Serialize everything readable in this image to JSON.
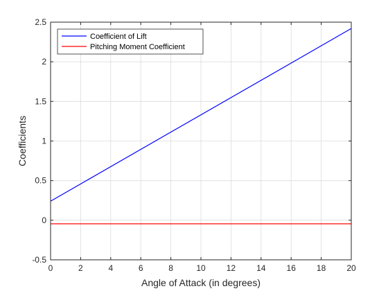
{
  "chart_data": {
    "type": "line",
    "title": "",
    "xlabel": "Angle of Attack (in degrees)",
    "ylabel": "Coefficients",
    "xlim": [
      0,
      20
    ],
    "ylim": [
      -0.5,
      2.5
    ],
    "xticks": [
      0,
      2,
      4,
      6,
      8,
      10,
      12,
      14,
      16,
      18,
      20
    ],
    "yticks": [
      -0.5,
      0,
      0.5,
      1,
      1.5,
      2,
      2.5
    ],
    "xtick_labels": [
      "0",
      "2",
      "4",
      "6",
      "8",
      "10",
      "12",
      "14",
      "16",
      "18",
      "20"
    ],
    "ytick_labels": [
      "-0.5",
      "0",
      "0.5",
      "1",
      "1.5",
      "2",
      "2.5"
    ],
    "grid": true,
    "legend_position": "top-left",
    "series": [
      {
        "name": "Coefficient of Lift",
        "color": "#0000ff",
        "x": [
          0,
          20
        ],
        "y": [
          0.24,
          2.42
        ]
      },
      {
        "name": "Pitching Moment Coefficient",
        "color": "#ff0000",
        "x": [
          0,
          20
        ],
        "y": [
          -0.045,
          -0.045
        ]
      }
    ]
  }
}
